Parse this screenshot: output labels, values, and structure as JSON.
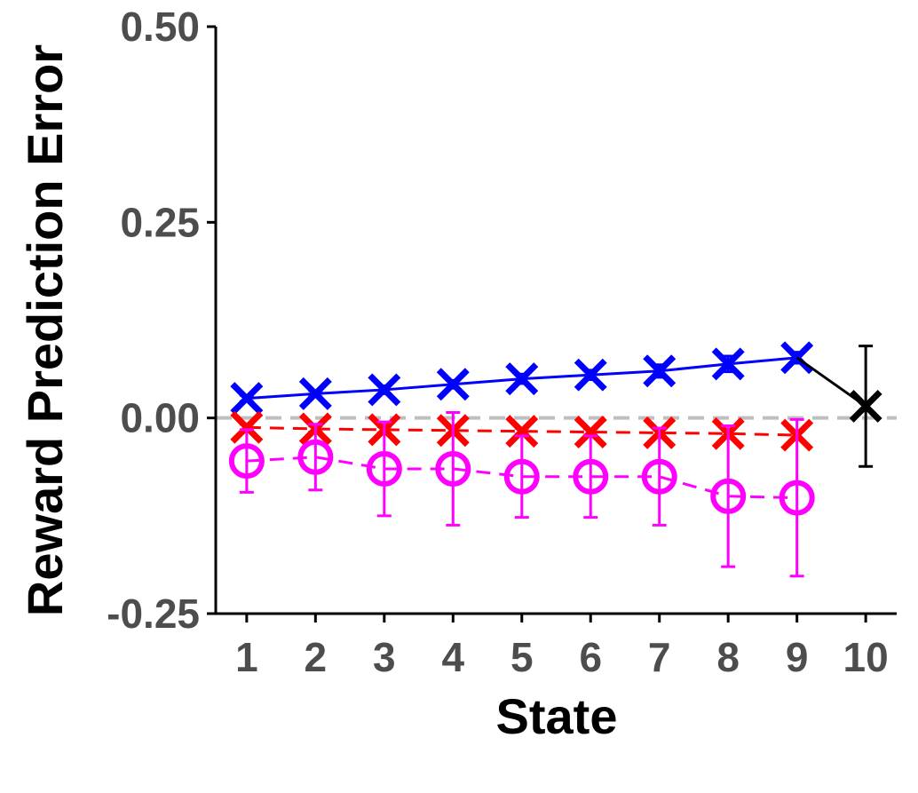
{
  "chart_data": {
    "type": "line",
    "title": "",
    "xlabel": "State",
    "ylabel": "Reward Prediction Error",
    "x": [
      1,
      2,
      3,
      4,
      5,
      6,
      7,
      8,
      9,
      10
    ],
    "x_tick_labels": [
      "1",
      "2",
      "3",
      "4",
      "5",
      "6",
      "7",
      "8",
      "9",
      "10"
    ],
    "y_ticks": [
      -0.25,
      0.0,
      0.25,
      0.5
    ],
    "y_tick_labels": [
      "-0.25",
      "0.00",
      "0.25",
      "0.50"
    ],
    "xlim": [
      0.55,
      10.45
    ],
    "ylim": [
      -0.25,
      0.5
    ],
    "grid": false,
    "legend": "none",
    "reference_line": {
      "y": 0,
      "style": "dashed",
      "color": "#bebebe"
    },
    "series": [
      {
        "color": "#0000ff",
        "marker": "x",
        "line": "solid",
        "x": [
          1,
          2,
          3,
          4,
          5,
          6,
          7,
          8,
          9
        ],
        "y": [
          0.025,
          0.031,
          0.036,
          0.043,
          0.05,
          0.055,
          0.06,
          0.069,
          0.077
        ],
        "err": [
          0.004,
          0.004,
          0.005,
          0.005,
          0.006,
          0.006,
          0.008,
          0.01,
          0.007
        ]
      },
      {
        "color": "#ff0000",
        "marker": "x",
        "line": "dashed",
        "x": [
          1,
          2,
          3,
          4,
          5,
          6,
          7,
          8,
          9
        ],
        "y": [
          -0.012,
          -0.014,
          -0.015,
          -0.016,
          -0.017,
          -0.018,
          -0.019,
          -0.02,
          -0.022
        ],
        "err": [
          0.004,
          0.004,
          0.004,
          0.004,
          0.004,
          0.004,
          0.005,
          0.005,
          0.005
        ]
      },
      {
        "color": "#ff00ff",
        "marker": "circle",
        "line": "dashed",
        "x": [
          1,
          2,
          3,
          4,
          5,
          6,
          7,
          8,
          9
        ],
        "y": [
          -0.055,
          -0.05,
          -0.065,
          -0.065,
          -0.075,
          -0.075,
          -0.075,
          -0.1,
          -0.102
        ],
        "err": [
          0.04,
          0.042,
          0.06,
          0.072,
          0.052,
          0.052,
          0.062,
          0.09,
          0.1
        ]
      },
      {
        "color": "#000000",
        "marker": "x",
        "line": "solid",
        "x": [
          9,
          10
        ],
        "y": [
          0.077,
          0.015
        ],
        "err": [
          null,
          0.077
        ]
      }
    ]
  }
}
